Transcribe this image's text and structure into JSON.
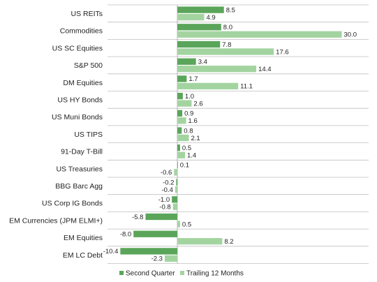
{
  "chart_data": {
    "type": "bar",
    "orientation": "horizontal",
    "title": "",
    "xlabel": "",
    "ylabel": "",
    "categories": [
      "US REITs",
      "Commodities",
      "US SC Equities",
      "S&P 500",
      "DM Equities",
      "US HY Bonds",
      "US Muni Bonds",
      "US TIPS",
      "91-Day T-Bill",
      "US Treasuries",
      "BBG Barc Agg",
      "US Corp IG Bonds",
      "EM Currencies (JPM ELMI+)",
      "EM Equities",
      "EM LC Debt"
    ],
    "series": [
      {
        "name": "Second Quarter",
        "color": "#5aa55a",
        "values": [
          8.5,
          8.0,
          7.8,
          3.4,
          1.7,
          1.0,
          0.9,
          0.8,
          0.5,
          0.1,
          -0.2,
          -1.0,
          -5.8,
          -8.0,
          -10.4
        ],
        "labels": [
          "8.5",
          "8.0",
          "7.8",
          "3.4",
          "1.7",
          "1.0",
          "0.9",
          "0.8",
          "0.5",
          "0.1",
          "-0.2",
          "-1.0",
          "-5.8",
          "-8.0",
          "-10.4"
        ]
      },
      {
        "name": "Trailing 12 Months",
        "color": "#a3d4a0",
        "values": [
          4.9,
          30.0,
          17.6,
          14.4,
          11.1,
          2.6,
          1.6,
          2.1,
          1.4,
          -0.6,
          -0.4,
          -0.8,
          0.5,
          8.2,
          -2.3
        ],
        "labels": [
          "4.9",
          "30.0",
          "17.6",
          "14.4",
          "11.1",
          "2.6",
          "1.6",
          "2.1",
          "1.4",
          "-0.6",
          "-0.4",
          "-0.8",
          "0.5",
          "8.2",
          "-2.3"
        ]
      }
    ],
    "gridlines": "horizontal-between-categories",
    "legend_position": "bottom"
  }
}
